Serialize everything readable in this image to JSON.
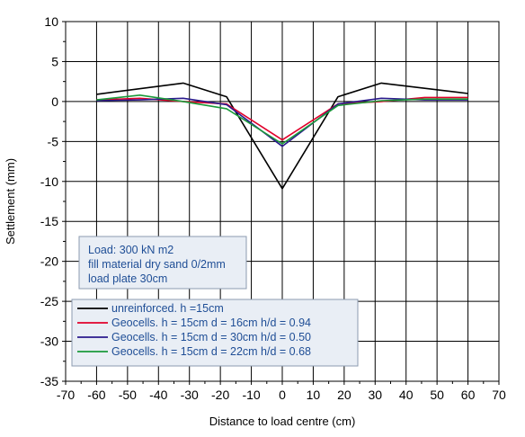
{
  "chart_data": {
    "type": "line",
    "xlabel": "Distance to load centre (cm)",
    "ylabel": "Settlement (mm)",
    "xlim": [
      -70,
      70
    ],
    "ylim": [
      -35,
      10
    ],
    "xticks": [
      -70,
      -60,
      -50,
      -40,
      -30,
      -20,
      -10,
      0,
      10,
      20,
      30,
      40,
      50,
      60,
      70
    ],
    "yticks": [
      -35,
      -30,
      -25,
      -20,
      -15,
      -10,
      -5,
      0,
      5,
      10
    ],
    "grid": true,
    "legend_placement": "lower-left",
    "annotation": {
      "lines": [
        "Load: 300 kN m2",
        "fill material dry sand 0/2mm",
        "load plate 30cm"
      ]
    },
    "series": [
      {
        "name": "unreinforced. h =15cm",
        "color": "#000000",
        "x": [
          -60,
          -32,
          -18,
          0,
          18,
          32,
          60
        ],
        "y": [
          0.9,
          2.3,
          0.6,
          -10.9,
          0.6,
          2.3,
          1.0
        ]
      },
      {
        "name": "Geocells. h = 15cm  d = 16cm  h/d = 0.94",
        "color": "#e0002a",
        "x": [
          -60,
          -46,
          -32,
          -18,
          0,
          18,
          32,
          46,
          60
        ],
        "y": [
          0.2,
          0.4,
          0.0,
          -0.3,
          -4.8,
          -0.3,
          0.0,
          0.5,
          0.5
        ]
      },
      {
        "name": "Geocells. h = 15cm  d = 30cm  h/d = 0.50",
        "color": "#2a1a8c",
        "x": [
          -60,
          -46,
          -32,
          -18,
          0,
          18,
          32,
          46,
          60
        ],
        "y": [
          0.1,
          0.2,
          0.4,
          -0.4,
          -5.6,
          -0.3,
          0.4,
          0.2,
          0.2
        ]
      },
      {
        "name": "Geocells. h = 15cm  d = 22cm  h/d = 0.68",
        "color": "#1a9a3a",
        "x": [
          -60,
          -46,
          -32,
          -18,
          0,
          18,
          32,
          46,
          60
        ],
        "y": [
          0.2,
          0.8,
          0.0,
          -0.9,
          -5.3,
          -0.5,
          0.1,
          0.3,
          0.3
        ]
      }
    ]
  }
}
